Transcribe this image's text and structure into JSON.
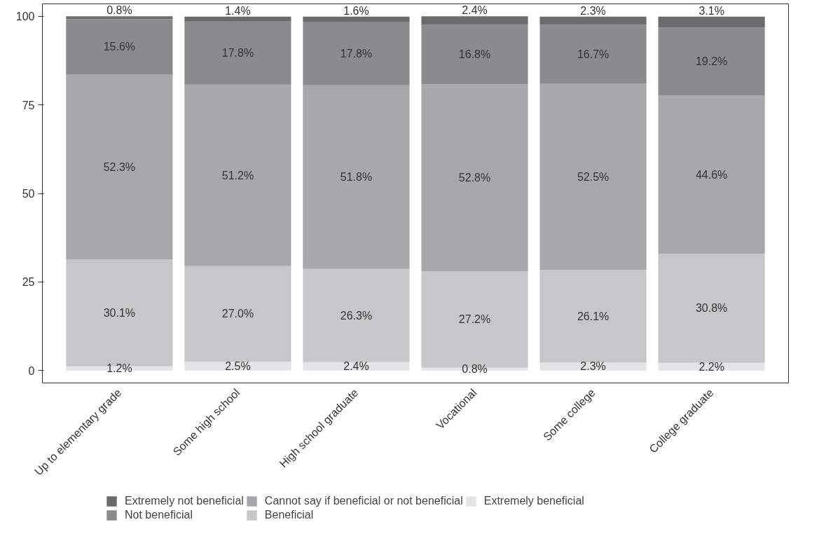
{
  "chart_data": {
    "type": "bar",
    "stacked": true,
    "categories": [
      "Up to elementary grade",
      "Some high school",
      "High school graduate",
      "Vocational",
      "Some college",
      "College graduate"
    ],
    "series": [
      {
        "name": "Extremely beneficial",
        "color": "#e5e5e7",
        "values": [
          1.2,
          2.5,
          2.4,
          0.8,
          2.3,
          2.2
        ],
        "value_labels": [
          "1.2%",
          "2.5%",
          "2.4%",
          "0.8%",
          "2.3%",
          "2.2%"
        ]
      },
      {
        "name": "Beneficial",
        "color": "#c6c7c9",
        "values": [
          30.1,
          27.0,
          26.3,
          27.2,
          26.1,
          30.8
        ],
        "value_labels": [
          "30.1%",
          "27.0%",
          "26.3%",
          "27.2%",
          "26.1%",
          "30.8%"
        ]
      },
      {
        "name": "Cannot say if beneficial or not beneficial",
        "color": "#a7a8ab",
        "values": [
          52.3,
          51.2,
          51.8,
          52.8,
          52.5,
          44.6
        ],
        "value_labels": [
          "52.3%",
          "51.2%",
          "51.8%",
          "52.8%",
          "52.5%",
          "44.6%"
        ]
      },
      {
        "name": "Not beneficial",
        "color": "#8a8b8e",
        "values": [
          15.6,
          17.8,
          17.8,
          16.8,
          16.7,
          19.2
        ],
        "value_labels": [
          "15.6%",
          "17.8%",
          "17.8%",
          "16.8%",
          "16.7%",
          "19.2%"
        ]
      },
      {
        "name": "Extremely not beneficial",
        "color": "#6b6b6e",
        "values": [
          0.8,
          1.4,
          1.6,
          2.4,
          2.3,
          3.1
        ],
        "value_labels": [
          "0.8%",
          "1.4%",
          "1.6%",
          "2.4%",
          "2.3%",
          "3.1%"
        ]
      }
    ],
    "ylim": [
      -3.5,
      103.5
    ],
    "yticks": [
      0,
      25,
      50,
      75,
      100
    ],
    "grid": false,
    "legend": "bottom"
  }
}
